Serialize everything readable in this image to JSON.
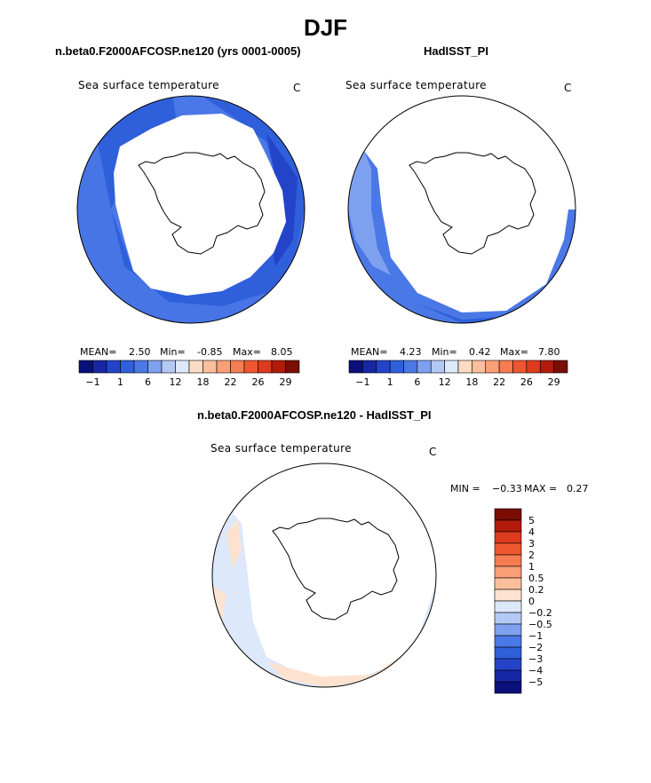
{
  "figure": {
    "season": "DJF",
    "panel_left_title": "n.beta0.F2000AFCOSP.ne120 (yrs 0001-0005)",
    "panel_right_title": "HadISST_PI",
    "diff_title": "n.beta0.F2000AFCOSP.ne120 - HadISST_PI"
  },
  "chart_data": [
    {
      "type": "heatmap",
      "projection": "south-polar-stereographic",
      "variable": "Sea surface temperature",
      "units": "C",
      "title": "n.beta0.F2000AFCOSP.ne120 (yrs 0001-0005)",
      "stats": {
        "mean_label": "MEAN=",
        "mean": "2.50",
        "min_label": "Min=",
        "min": "-0.85",
        "max_label": "Max=",
        "max": "8.05"
      },
      "colorbar": {
        "orientation": "horizontal",
        "tick_labels": [
          "−1",
          "1",
          "6",
          "12",
          "18",
          "22",
          "26",
          "29"
        ],
        "colors": [
          "#0a0f7a",
          "#1727a3",
          "#2344c8",
          "#2f5fdb",
          "#4a78e6",
          "#7ea1ef",
          "#b3c9f5",
          "#dde8fb",
          "#fcdcc4",
          "#fcbf9c",
          "#fb9f77",
          "#f67c52",
          "#ef5731",
          "#dd3b1d",
          "#b21b0c",
          "#7a0d04"
        ]
      }
    },
    {
      "type": "heatmap",
      "projection": "south-polar-stereographic",
      "variable": "Sea surface temperature",
      "units": "C",
      "title": "HadISST_PI",
      "stats": {
        "mean_label": "MEAN=",
        "mean": "4.23",
        "min_label": "Min=",
        "min": "0.42",
        "max_label": "Max=",
        "max": "7.80"
      },
      "colorbar": {
        "orientation": "horizontal",
        "tick_labels": [
          "−1",
          "1",
          "6",
          "12",
          "18",
          "22",
          "26",
          "29"
        ],
        "colors": [
          "#0a0f7a",
          "#1727a3",
          "#2344c8",
          "#2f5fdb",
          "#4a78e6",
          "#7ea1ef",
          "#b3c9f5",
          "#dde8fb",
          "#fcdcc4",
          "#fcbf9c",
          "#fb9f77",
          "#f67c52",
          "#ef5731",
          "#dd3b1d",
          "#b21b0c",
          "#7a0d04"
        ]
      }
    },
    {
      "type": "heatmap",
      "projection": "south-polar-stereographic",
      "variable": "Sea surface temperature",
      "units": "C",
      "title": "n.beta0.F2000AFCOSP.ne120 - HadISST_PI",
      "stats": {
        "min_label": "MIN =",
        "min": "−0.33",
        "max_label": "MAX =",
        "max": "0.27"
      },
      "colorbar": {
        "orientation": "vertical",
        "tick_labels": [
          "5",
          "4",
          "3",
          "2",
          "1",
          "0.5",
          "0.2",
          "0",
          "−0.2",
          "−0.5",
          "−1",
          "−2",
          "−3",
          "−4",
          "−5"
        ],
        "colors_top_to_bottom": [
          "#7a0d04",
          "#b21b0c",
          "#dd3b1d",
          "#ef5731",
          "#f67c52",
          "#fb9f77",
          "#fcbf9c",
          "#fde3cf",
          "#dde8fb",
          "#b3c9f5",
          "#7ea1ef",
          "#4a78e6",
          "#2f5fdb",
          "#2344c8",
          "#1727a3",
          "#0a0f7a"
        ]
      }
    }
  ]
}
